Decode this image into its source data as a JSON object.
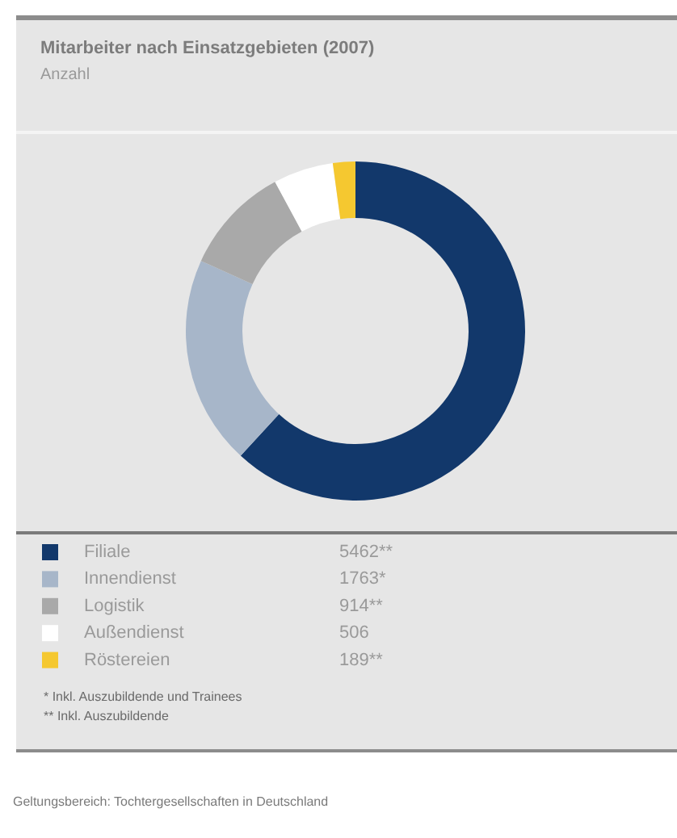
{
  "chart_data": {
    "type": "donut",
    "title": "Mitarbeiter nach Einsatzgebieten (2007)",
    "subtitle": "Anzahl",
    "categories": [
      "Filiale",
      "Innendienst",
      "Logistik",
      "Außendienst",
      "Röstereien"
    ],
    "values": [
      5462,
      1763,
      914,
      506,
      189
    ],
    "colors": [
      "#12386b",
      "#a7b6c9",
      "#a9a9a9",
      "#ffffff",
      "#f5c830"
    ],
    "value_labels": [
      "5462**",
      "1763*",
      "914**",
      "506",
      "189**"
    ],
    "legend": "bottom",
    "annotations": [
      "* Inkl. Auszubildende und Trainees",
      "** Inkl. Auszubildende",
      "Geltungsbereich: Tochtergesellschaften in Deutschland"
    ]
  }
}
